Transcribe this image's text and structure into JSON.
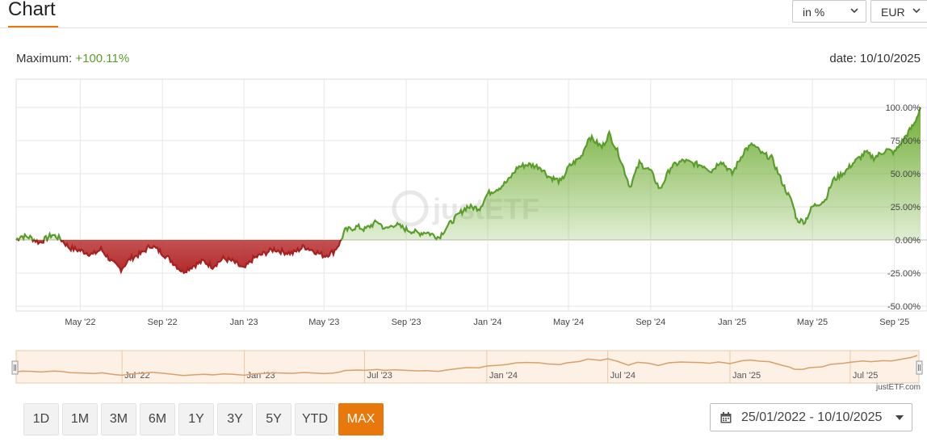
{
  "header": {
    "title": "Chart",
    "unit_select": "in %",
    "currency_select": "EUR"
  },
  "info": {
    "maximum_label": "Maximum:",
    "maximum_value": "+100.11%",
    "date_label": "date:",
    "date_value": "10/10/2025"
  },
  "colors": {
    "accent": "#e8780b",
    "positive": "#5a9e2a",
    "negative": "#a81f1f"
  },
  "chart_data": {
    "type": "area",
    "watermark": "justETF",
    "x_tick_labels": [
      "May '22",
      "Sep '22",
      "Jan '23",
      "May '23",
      "Sep '23",
      "Jan '24",
      "May '24",
      "Sep '24",
      "Jan '25",
      "May '25",
      "Sep '25"
    ],
    "x_tick_dates": [
      "2022-05-01",
      "2022-09-01",
      "2023-01-01",
      "2023-05-01",
      "2023-09-01",
      "2024-01-01",
      "2024-05-01",
      "2024-09-01",
      "2025-01-01",
      "2025-05-01",
      "2025-09-01"
    ],
    "y_tick_labels": [
      "100.00%",
      "75.00%",
      "50.00%",
      "25.00%",
      "0.00%",
      "-25.00%",
      "-50.00%"
    ],
    "y_tick_values": [
      100,
      75,
      50,
      25,
      0,
      -25,
      -50
    ],
    "ylim": [
      -50,
      100
    ],
    "xlim": [
      "2022-01-25",
      "2025-10-10"
    ],
    "grid": true,
    "series": [
      {
        "unit": "%",
        "points": [
          [
            "2022-01-25",
            0
          ],
          [
            "2022-02-01",
            3
          ],
          [
            "2022-02-15",
            2
          ],
          [
            "2022-03-01",
            -2
          ],
          [
            "2022-03-20",
            4
          ],
          [
            "2022-04-01",
            1
          ],
          [
            "2022-04-15",
            -6
          ],
          [
            "2022-05-01",
            -8
          ],
          [
            "2022-05-20",
            -11
          ],
          [
            "2022-06-01",
            -7
          ],
          [
            "2022-06-20",
            -18
          ],
          [
            "2022-07-01",
            -22
          ],
          [
            "2022-07-15",
            -14
          ],
          [
            "2022-08-01",
            -10
          ],
          [
            "2022-08-15",
            -4
          ],
          [
            "2022-09-01",
            -10
          ],
          [
            "2022-09-15",
            -16
          ],
          [
            "2022-10-01",
            -24
          ],
          [
            "2022-10-15",
            -20
          ],
          [
            "2022-11-01",
            -16
          ],
          [
            "2022-11-15",
            -20
          ],
          [
            "2022-12-01",
            -14
          ],
          [
            "2022-12-15",
            -16
          ],
          [
            "2023-01-01",
            -22
          ],
          [
            "2023-01-15",
            -14
          ],
          [
            "2023-02-01",
            -10
          ],
          [
            "2023-02-15",
            -7
          ],
          [
            "2023-03-01",
            -9
          ],
          [
            "2023-03-15",
            -10
          ],
          [
            "2023-04-01",
            -5
          ],
          [
            "2023-04-15",
            -8
          ],
          [
            "2023-05-01",
            -12
          ],
          [
            "2023-05-15",
            -9
          ],
          [
            "2023-05-25",
            -2
          ],
          [
            "2023-06-01",
            7
          ],
          [
            "2023-06-20",
            10
          ],
          [
            "2023-07-01",
            8
          ],
          [
            "2023-07-20",
            14
          ],
          [
            "2023-08-01",
            8
          ],
          [
            "2023-08-15",
            12
          ],
          [
            "2023-09-01",
            8
          ],
          [
            "2023-09-20",
            5
          ],
          [
            "2023-10-01",
            6
          ],
          [
            "2023-10-20",
            2
          ],
          [
            "2023-11-01",
            10
          ],
          [
            "2023-11-20",
            20
          ],
          [
            "2023-12-01",
            25
          ],
          [
            "2023-12-20",
            24
          ],
          [
            "2024-01-01",
            35
          ],
          [
            "2024-01-20",
            40
          ],
          [
            "2024-02-01",
            45
          ],
          [
            "2024-02-15",
            55
          ],
          [
            "2024-03-01",
            57
          ],
          [
            "2024-03-20",
            55
          ],
          [
            "2024-04-01",
            48
          ],
          [
            "2024-04-20",
            44
          ],
          [
            "2024-05-01",
            55
          ],
          [
            "2024-05-20",
            63
          ],
          [
            "2024-06-01",
            78
          ],
          [
            "2024-06-20",
            70
          ],
          [
            "2024-07-01",
            80
          ],
          [
            "2024-07-15",
            65
          ],
          [
            "2024-08-01",
            40
          ],
          [
            "2024-08-15",
            58
          ],
          [
            "2024-09-01",
            52
          ],
          [
            "2024-09-15",
            38
          ],
          [
            "2024-10-01",
            55
          ],
          [
            "2024-10-20",
            60
          ],
          [
            "2024-11-01",
            58
          ],
          [
            "2024-11-20",
            56
          ],
          [
            "2024-12-01",
            52
          ],
          [
            "2024-12-15",
            60
          ],
          [
            "2025-01-01",
            50
          ],
          [
            "2025-01-20",
            68
          ],
          [
            "2025-02-01",
            72
          ],
          [
            "2025-02-15",
            65
          ],
          [
            "2025-03-01",
            62
          ],
          [
            "2025-03-20",
            40
          ],
          [
            "2025-04-01",
            28
          ],
          [
            "2025-04-08",
            15
          ],
          [
            "2025-04-20",
            14
          ],
          [
            "2025-05-01",
            25
          ],
          [
            "2025-05-20",
            30
          ],
          [
            "2025-06-01",
            45
          ],
          [
            "2025-06-20",
            52
          ],
          [
            "2025-07-01",
            58
          ],
          [
            "2025-07-20",
            66
          ],
          [
            "2025-08-01",
            62
          ],
          [
            "2025-08-20",
            68
          ],
          [
            "2025-09-01",
            66
          ],
          [
            "2025-09-20",
            80
          ],
          [
            "2025-10-01",
            88
          ],
          [
            "2025-10-10",
            100.11
          ]
        ]
      }
    ],
    "navigator_tick_labels": [
      "Jul '22",
      "Jan '23",
      "Jul '23",
      "Jan '24",
      "Jul '24",
      "Jan '25",
      "Jul '25"
    ],
    "navigator_tick_dates": [
      "2022-07-01",
      "2023-01-01",
      "2023-07-01",
      "2024-01-01",
      "2024-07-01",
      "2025-01-01",
      "2025-07-01"
    ],
    "credit": "justETF.com"
  },
  "range_buttons": [
    {
      "label": "1D",
      "active": false
    },
    {
      "label": "1M",
      "active": false
    },
    {
      "label": "3M",
      "active": false
    },
    {
      "label": "6M",
      "active": false
    },
    {
      "label": "1Y",
      "active": false
    },
    {
      "label": "3Y",
      "active": false
    },
    {
      "label": "5Y",
      "active": false
    },
    {
      "label": "YTD",
      "active": false
    },
    {
      "label": "MAX",
      "active": true
    }
  ],
  "date_range": {
    "label": "25/01/2022 - 10/10/2025",
    "icon": "calendar-icon"
  }
}
